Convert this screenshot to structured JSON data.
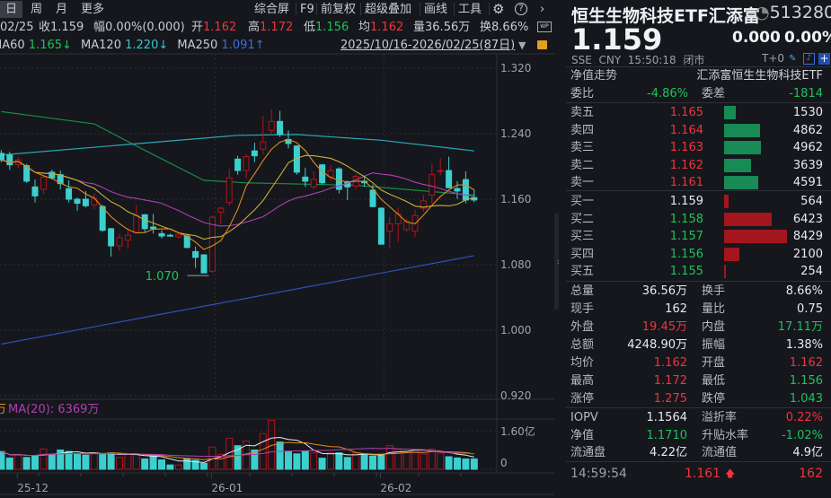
{
  "toolbar": {
    "periods": [
      "日",
      "周",
      "月",
      "更多"
    ],
    "actions": [
      "综合屏",
      "F9",
      "前复权",
      "超级叠加",
      "画线",
      "工具"
    ],
    "icons": [
      "gear-icon",
      "help-icon",
      "chevron-right-icon"
    ]
  },
  "info": {
    "date": "02/25",
    "close_label": "收",
    "close": "1.159",
    "change_label": "幅",
    "change": "0.00%(0.000)",
    "open_label": "开",
    "open": "1.162",
    "high_label": "高",
    "high": "1.172",
    "low_label": "低",
    "low": "1.156",
    "avg_label": "均",
    "avg": "1.162",
    "vol_label": "量",
    "vol": "36.56万",
    "turnover_label": "换",
    "turnover": "8.66%"
  },
  "ma_row": {
    "items": [
      {
        "label": "MA60",
        "value": "1.165↓",
        "color": "#1ec25a"
      },
      {
        "label": "MA120",
        "value": "1.220↓",
        "color": "#35c9c9"
      },
      {
        "label": "MA250",
        "value": "1.091↑",
        "color": "#3a6fe0"
      }
    ],
    "range": "2025/10/16-2026/02/25(87日)"
  },
  "volume_header": {
    "fragment": "万",
    "ma20": "MA(20): 6369万"
  },
  "chart_data": {
    "type": "candlestick",
    "y_ticks": [
      "1.320",
      "1.240",
      "1.160",
      "1.080",
      "1.000",
      "0.920"
    ],
    "ylim": [
      0.905,
      1.335
    ],
    "x_labels": [
      {
        "label": "25-12",
        "index": 2
      },
      {
        "label": "26-01",
        "index": 25
      },
      {
        "label": "26-02",
        "index": 45
      }
    ],
    "low_annotation": {
      "label": "1.070",
      "index": 25
    },
    "candles": [
      [
        1.216,
        1.208,
        1.22,
        1.205
      ],
      [
        1.214,
        1.202,
        1.218,
        1.196
      ],
      [
        1.202,
        1.208,
        1.212,
        1.198
      ],
      [
        1.201,
        1.182,
        1.203,
        1.18
      ],
      [
        1.175,
        1.164,
        1.184,
        1.156
      ],
      [
        1.172,
        1.187,
        1.19,
        1.166
      ],
      [
        1.193,
        1.186,
        1.196,
        1.184
      ],
      [
        1.19,
        1.179,
        1.195,
        1.172
      ],
      [
        1.173,
        1.16,
        1.183,
        1.156
      ],
      [
        1.16,
        1.155,
        1.162,
        1.146
      ],
      [
        1.16,
        1.152,
        1.17,
        1.15
      ],
      [
        1.153,
        1.161,
        1.167,
        1.148
      ],
      [
        1.151,
        1.122,
        1.153,
        1.12
      ],
      [
        1.124,
        1.103,
        1.125,
        1.09
      ],
      [
        1.103,
        1.113,
        1.118,
        1.097
      ],
      [
        1.11,
        1.116,
        1.125,
        1.1
      ],
      [
        1.119,
        1.14,
        1.153,
        1.118
      ],
      [
        1.141,
        1.124,
        1.142,
        1.12
      ],
      [
        1.126,
        1.124,
        1.142,
        1.118
      ],
      [
        1.118,
        1.115,
        1.122,
        1.112
      ],
      [
        1.116,
        1.116,
        1.118,
        1.114
      ],
      [
        1.114,
        1.117,
        1.118,
        1.112
      ],
      [
        1.115,
        1.101,
        1.118,
        1.1
      ],
      [
        1.096,
        1.089,
        1.102,
        1.076
      ],
      [
        1.092,
        1.07,
        1.093,
        1.07
      ],
      [
        1.072,
        1.138,
        1.14,
        1.07
      ],
      [
        1.144,
        1.149,
        1.151,
        1.13
      ],
      [
        1.156,
        1.186,
        1.197,
        1.152
      ],
      [
        1.209,
        1.195,
        1.213,
        1.19
      ],
      [
        1.195,
        1.212,
        1.215,
        1.185
      ],
      [
        1.219,
        1.213,
        1.229,
        1.205
      ],
      [
        1.221,
        1.23,
        1.262,
        1.215
      ],
      [
        1.244,
        1.255,
        1.27,
        1.24
      ],
      [
        1.255,
        1.239,
        1.268,
        1.236
      ],
      [
        1.233,
        1.228,
        1.244,
        1.222
      ],
      [
        1.225,
        1.193,
        1.226,
        1.19
      ],
      [
        1.187,
        1.182,
        1.198,
        1.175
      ],
      [
        1.175,
        1.184,
        1.194,
        1.172
      ],
      [
        1.202,
        1.18,
        1.203,
        1.178
      ],
      [
        1.187,
        1.195,
        1.202,
        1.182
      ],
      [
        1.197,
        1.172,
        1.199,
        1.167
      ],
      [
        1.181,
        1.175,
        1.183,
        1.159
      ],
      [
        1.176,
        1.188,
        1.19,
        1.172
      ],
      [
        1.182,
        1.18,
        1.188,
        1.175
      ],
      [
        1.171,
        1.151,
        1.178,
        1.15
      ],
      [
        1.149,
        1.105,
        1.15,
        1.105
      ],
      [
        1.121,
        1.13,
        1.138,
        1.1
      ],
      [
        1.13,
        1.142,
        1.15,
        1.108
      ],
      [
        1.123,
        1.133,
        1.136,
        1.12
      ],
      [
        1.121,
        1.14,
        1.147,
        1.114
      ],
      [
        1.149,
        1.158,
        1.165,
        1.145
      ],
      [
        1.165,
        1.19,
        1.204,
        1.155
      ],
      [
        1.194,
        1.195,
        1.21,
        1.189
      ],
      [
        1.195,
        1.174,
        1.212,
        1.174
      ],
      [
        1.173,
        1.17,
        1.182,
        1.16
      ],
      [
        1.184,
        1.159,
        1.194,
        1.155
      ],
      [
        1.162,
        1.159,
        1.172,
        1.156
      ]
    ],
    "long_ma": [
      {
        "name": "MA60",
        "color": "#1a8a45",
        "points": [
          [
            0,
            1.267
          ],
          [
            11,
            1.252
          ],
          [
            16,
            1.225
          ],
          [
            24,
            1.183
          ],
          [
            29,
            1.18
          ],
          [
            42,
            1.177
          ],
          [
            56,
            1.165
          ]
        ]
      },
      {
        "name": "MA120",
        "color": "#2aa8b8",
        "points": [
          [
            0,
            1.214
          ],
          [
            28,
            1.238
          ],
          [
            35,
            1.239
          ],
          [
            45,
            1.232
          ],
          [
            56,
            1.219
          ]
        ]
      },
      {
        "name": "MA250",
        "color": "#3050c0",
        "points": [
          [
            0,
            0.983
          ],
          [
            56,
            1.091
          ]
        ]
      }
    ],
    "short_ma_colors": {
      "ma5": "#e08a1e",
      "ma10": "#c9b037",
      "ma20": "#b040b0"
    },
    "volume_ticks": [
      "1.60亿",
      "0"
    ],
    "volume_max": 1.6,
    "volumes": [
      0.74,
      0.47,
      0.62,
      0.49,
      0.55,
      0.84,
      0.62,
      0.8,
      0.74,
      0.62,
      0.58,
      0.68,
      0.64,
      0.68,
      0.49,
      0.62,
      0.62,
      0.43,
      0.55,
      0.39,
      0.18,
      0.18,
      0.43,
      0.37,
      0.25,
      0.92,
      0.62,
      1.29,
      0.98,
      1.17,
      0.8,
      1.48,
      2.03,
      1.13,
      0.74,
      0.64,
      0.76,
      0.68,
      0.46,
      0.68,
      0.68,
      0.49,
      0.68,
      0.64,
      0.55,
      0.62,
      0.98,
      0.82,
      0.74,
      0.82,
      0.64,
      0.84,
      0.68,
      0.52,
      0.47,
      0.43,
      0.43
    ]
  },
  "quote": {
    "name": "恒生生物科技ETF汇添富",
    "code": "513280",
    "price": "1.159",
    "change": "0.000",
    "change_pct": "0.00%",
    "meta": [
      "SSE",
      "CNY",
      "15:50:18",
      "闭市"
    ],
    "t0": "T+0",
    "nav_trend": "净值走势",
    "full_name": "汇添富恒生生物科技ETF",
    "wb_label": "委比",
    "wb": "-4.86%",
    "wc_label": "委差",
    "wc": "-1814"
  },
  "order_book": {
    "asks": [
      {
        "label": "卖五",
        "price": "1.165",
        "qty": "1530",
        "q": 1530
      },
      {
        "label": "卖四",
        "price": "1.164",
        "qty": "4862",
        "q": 4862
      },
      {
        "label": "卖三",
        "price": "1.163",
        "qty": "4962",
        "q": 4962
      },
      {
        "label": "卖二",
        "price": "1.162",
        "qty": "3639",
        "q": 3639
      },
      {
        "label": "卖一",
        "price": "1.161",
        "qty": "4591",
        "q": 4591
      }
    ],
    "bids": [
      {
        "label": "买一",
        "price": "1.159",
        "qty": "564",
        "q": 564
      },
      {
        "label": "买二",
        "price": "1.158",
        "qty": "6423",
        "q": 6423
      },
      {
        "label": "买三",
        "price": "1.157",
        "qty": "8429",
        "q": 8429
      },
      {
        "label": "买四",
        "price": "1.156",
        "qty": "2100",
        "q": 2100
      },
      {
        "label": "买五",
        "price": "1.155",
        "qty": "254",
        "q": 254
      }
    ],
    "ask_color": "#178a55",
    "bid_color": "#a3161e"
  },
  "stats": [
    [
      {
        "l": "总量",
        "v": "36.56万",
        "c": "w"
      },
      {
        "l": "换手",
        "v": "8.66%",
        "c": "w"
      }
    ],
    [
      {
        "l": "现手",
        "v": "162",
        "c": "w"
      },
      {
        "l": "量比",
        "v": "0.75",
        "c": "w"
      }
    ],
    [
      {
        "l": "外盘",
        "v": "19.45万",
        "c": "r"
      },
      {
        "l": "内盘",
        "v": "17.11万",
        "c": "g"
      }
    ],
    [
      {
        "l": "总额",
        "v": "4248.90万",
        "c": "w"
      },
      {
        "l": "振幅",
        "v": "1.38%",
        "c": "w"
      }
    ],
    [
      {
        "l": "均价",
        "v": "1.162",
        "c": "r"
      },
      {
        "l": "开盘",
        "v": "1.162",
        "c": "r"
      }
    ],
    [
      {
        "l": "最高",
        "v": "1.172",
        "c": "r"
      },
      {
        "l": "最低",
        "v": "1.156",
        "c": "g"
      }
    ],
    [
      {
        "l": "涨停",
        "v": "1.275",
        "c": "r"
      },
      {
        "l": "跌停",
        "v": "1.043",
        "c": "g"
      }
    ]
  ],
  "fund_stats": [
    [
      {
        "l": "IOPV",
        "v": "1.1564",
        "c": "w"
      },
      {
        "l": "溢折率",
        "v": "0.22%",
        "c": "r"
      }
    ],
    [
      {
        "l": "净值",
        "v": "1.1710",
        "c": "g"
      },
      {
        "l": "升贴水率",
        "v": "-1.02%",
        "c": "g"
      }
    ],
    [
      {
        "l": "流通盘",
        "v": "4.22亿",
        "c": "w"
      },
      {
        "l": "流通值",
        "v": "4.9亿",
        "c": "w"
      }
    ]
  ],
  "last_tick": {
    "time": "14:59:54",
    "price": "1.161",
    "qty": "162"
  }
}
